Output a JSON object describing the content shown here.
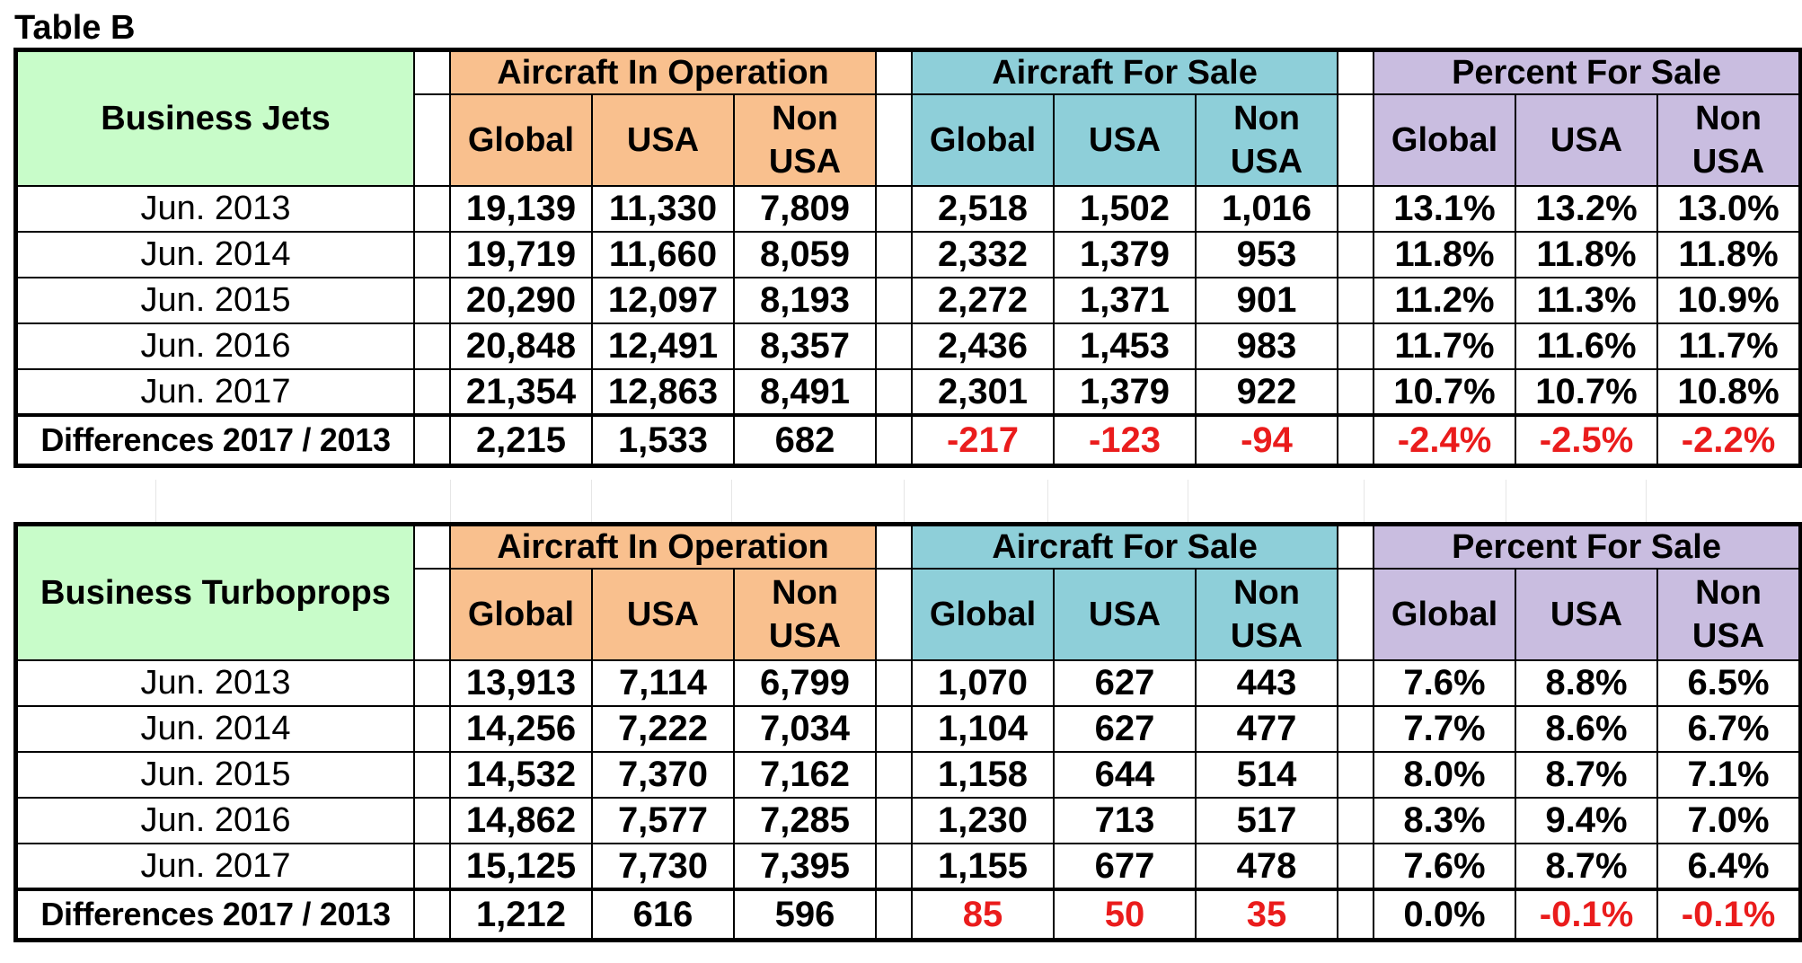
{
  "title": "Table B",
  "tables": [
    {
      "category": "Business Jets",
      "groups": [
        "Aircraft In Operation",
        "Aircraft For Sale",
        "Percent For Sale"
      ],
      "subheaders": [
        "Global",
        "USA",
        "Non USA"
      ],
      "rows": [
        {
          "label": "Jun. 2013",
          "values": [
            "19,139",
            "11,330",
            "7,809",
            "2,518",
            "1,502",
            "1,016",
            "13.1%",
            "13.2%",
            "13.0%"
          ]
        },
        {
          "label": "Jun. 2014",
          "values": [
            "19,719",
            "11,660",
            "8,059",
            "2,332",
            "1,379",
            "953",
            "11.8%",
            "11.8%",
            "11.8%"
          ]
        },
        {
          "label": "Jun. 2015",
          "values": [
            "20,290",
            "12,097",
            "8,193",
            "2,272",
            "1,371",
            "901",
            "11.2%",
            "11.3%",
            "10.9%"
          ]
        },
        {
          "label": "Jun. 2016",
          "values": [
            "20,848",
            "12,491",
            "8,357",
            "2,436",
            "1,453",
            "983",
            "11.7%",
            "11.6%",
            "11.7%"
          ]
        },
        {
          "label": "Jun. 2017",
          "values": [
            "21,354",
            "12,863",
            "8,491",
            "2,301",
            "1,379",
            "922",
            "10.7%",
            "10.7%",
            "10.8%"
          ]
        }
      ],
      "diff": {
        "label": "Differences 2017 / 2013",
        "values": [
          "2,215",
          "1,533",
          "682",
          "-217",
          "-123",
          "-94",
          "-2.4%",
          "-2.5%",
          "-2.2%"
        ],
        "red": [
          false,
          false,
          false,
          true,
          true,
          true,
          true,
          true,
          true
        ]
      }
    },
    {
      "category": "Business Turboprops",
      "groups": [
        "Aircraft In Operation",
        "Aircraft For Sale",
        "Percent For Sale"
      ],
      "subheaders": [
        "Global",
        "USA",
        "Non USA"
      ],
      "rows": [
        {
          "label": "Jun. 2013",
          "values": [
            "13,913",
            "7,114",
            "6,799",
            "1,070",
            "627",
            "443",
            "7.6%",
            "8.8%",
            "6.5%"
          ]
        },
        {
          "label": "Jun. 2014",
          "values": [
            "14,256",
            "7,222",
            "7,034",
            "1,104",
            "627",
            "477",
            "7.7%",
            "8.6%",
            "6.7%"
          ]
        },
        {
          "label": "Jun. 2015",
          "values": [
            "14,532",
            "7,370",
            "7,162",
            "1,158",
            "644",
            "514",
            "8.0%",
            "8.7%",
            "7.1%"
          ]
        },
        {
          "label": "Jun. 2016",
          "values": [
            "14,862",
            "7,577",
            "7,285",
            "1,230",
            "713",
            "517",
            "8.3%",
            "9.4%",
            "7.0%"
          ]
        },
        {
          "label": "Jun. 2017",
          "values": [
            "15,125",
            "7,730",
            "7,395",
            "1,155",
            "677",
            "478",
            "7.6%",
            "8.7%",
            "6.4%"
          ]
        }
      ],
      "diff": {
        "label": "Differences 2017 / 2013",
        "values": [
          "1,212",
          "616",
          "596",
          "85",
          "50",
          "35",
          "0.0%",
          "-0.1%",
          "-0.1%"
        ],
        "red": [
          false,
          false,
          false,
          true,
          true,
          true,
          false,
          true,
          true
        ]
      }
    }
  ],
  "colors": {
    "category_bg": "#c8fcc9",
    "operation_bg": "#f9c08e",
    "sale_bg": "#8ecfd9",
    "percent_bg": "#c9bde0",
    "negative_text": "#ea1c1c"
  }
}
